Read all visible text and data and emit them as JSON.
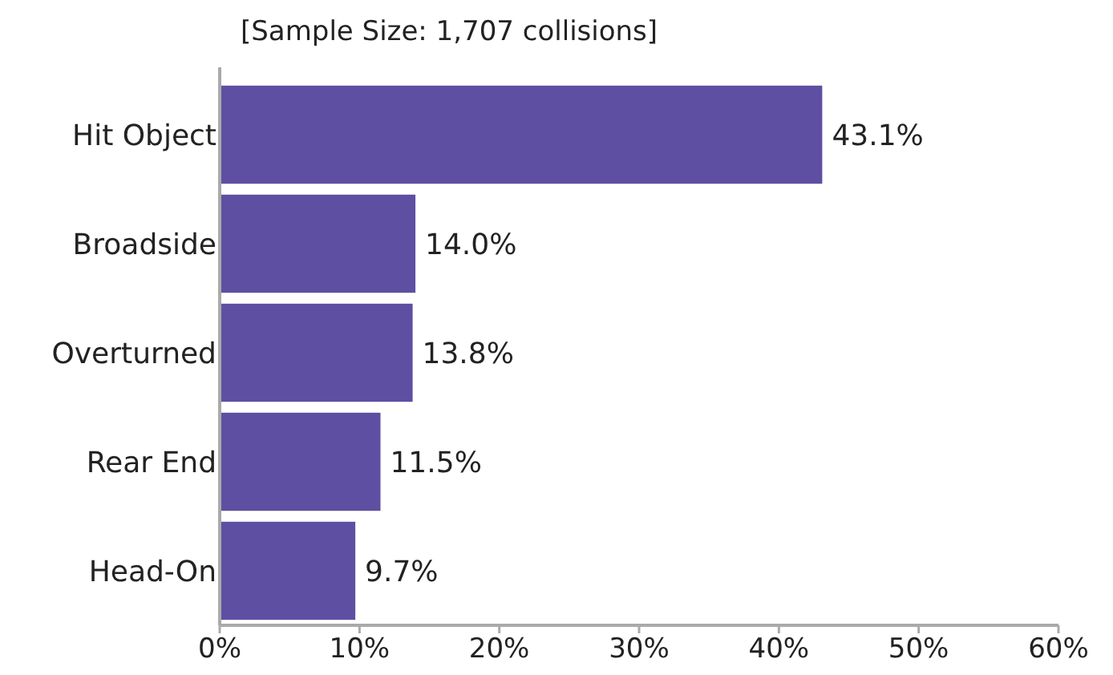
{
  "chart_data": {
    "type": "bar",
    "orientation": "horizontal",
    "title": "[Sample Size: 1,707 collisions]",
    "categories": [
      "Hit Object",
      "Broadside",
      "Overturned",
      "Rear End",
      "Head-On"
    ],
    "values": [
      43.1,
      14.0,
      13.8,
      11.5,
      9.7
    ],
    "value_labels": [
      "43.1%",
      "14.0%",
      "13.8%",
      "11.5%",
      "9.7%"
    ],
    "color": "#5e4fa2",
    "xlim": [
      0,
      60
    ],
    "xticks": [
      {
        "value": 0,
        "label": "0%"
      },
      {
        "value": 10,
        "label": "10%"
      },
      {
        "value": 20,
        "label": "20%"
      },
      {
        "value": 30,
        "label": "30%"
      },
      {
        "value": 40,
        "label": "40%"
      },
      {
        "value": 50,
        "label": "50%"
      },
      {
        "value": 60,
        "label": "60%"
      }
    ],
    "grid": false
  }
}
